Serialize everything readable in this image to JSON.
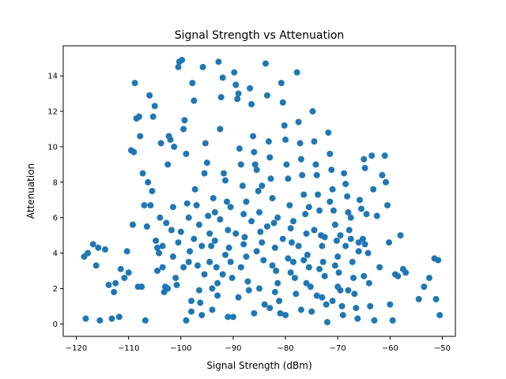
{
  "chart_data": {
    "type": "scatter",
    "title": "Signal Strength vs Attenuation",
    "xlabel": "Signal Strength (dBm)",
    "ylabel": "Attenuation",
    "xlim": [
      -122.5,
      -47.5
    ],
    "ylim": [
      -0.7,
      15.7
    ],
    "xticks": [
      -120,
      -110,
      -100,
      -90,
      -80,
      -70,
      -60,
      -50
    ],
    "yticks": [
      0,
      2,
      4,
      6,
      8,
      10,
      12,
      14
    ],
    "grid": false,
    "marker_color": "#1f77b4",
    "points": [
      [
        -118.5,
        3.8
      ],
      [
        -117.8,
        4.0
      ],
      [
        -118.2,
        0.3
      ],
      [
        -116.8,
        4.5
      ],
      [
        -116.2,
        3.3
      ],
      [
        -115.8,
        4.3
      ],
      [
        -115.5,
        0.2
      ],
      [
        -114.5,
        4.2
      ],
      [
        -113.8,
        2.2
      ],
      [
        -113.2,
        0.3
      ],
      [
        -112.8,
        1.8
      ],
      [
        -112.5,
        2.3
      ],
      [
        -111.8,
        0.4
      ],
      [
        -111.5,
        3.1
      ],
      [
        -110.8,
        2.6
      ],
      [
        -110.3,
        4.1
      ],
      [
        -110.0,
        2.9
      ],
      [
        -109.5,
        9.8
      ],
      [
        -109.2,
        5.6
      ],
      [
        -109.0,
        9.7
      ],
      [
        -108.8,
        13.6
      ],
      [
        -108.5,
        11.6
      ],
      [
        -108.2,
        2.1
      ],
      [
        -108.0,
        11.7
      ],
      [
        -107.8,
        10.6
      ],
      [
        -107.5,
        2.1
      ],
      [
        -107.3,
        8.5
      ],
      [
        -107.0,
        6.7
      ],
      [
        -106.8,
        0.2
      ],
      [
        -106.5,
        5.5
      ],
      [
        -106.3,
        8.0
      ],
      [
        -106.0,
        12.9
      ],
      [
        -105.8,
        6.7
      ],
      [
        -105.5,
        7.5
      ],
      [
        -105.3,
        11.7
      ],
      [
        -105.0,
        12.3
      ],
      [
        -104.8,
        4.7
      ],
      [
        -104.5,
        4.3
      ],
      [
        -104.2,
        4.0
      ],
      [
        -104.0,
        6.0
      ],
      [
        -103.8,
        10.2
      ],
      [
        -103.5,
        3.2
      ],
      [
        -103.2,
        1.8
      ],
      [
        -103.0,
        2.1
      ],
      [
        -102.8,
        5.7
      ],
      [
        -102.5,
        9.0
      ],
      [
        -102.3,
        10.6
      ],
      [
        -102.0,
        10.4
      ],
      [
        -101.8,
        5.3
      ],
      [
        -101.5,
        6.6
      ],
      [
        -101.3,
        10.0
      ],
      [
        -101.0,
        2.6
      ],
      [
        -100.8,
        2.2
      ],
      [
        -100.5,
        14.5
      ],
      [
        -100.3,
        14.8
      ],
      [
        -100.0,
        5.2
      ],
      [
        -99.8,
        14.9
      ],
      [
        -99.5,
        11.0
      ],
      [
        -99.3,
        11.5
      ],
      [
        -99.0,
        9.6
      ],
      [
        -98.8,
        6.8
      ],
      [
        -98.5,
        6.0
      ],
      [
        -98.3,
        4.1
      ],
      [
        -98.0,
        1.3
      ],
      [
        -97.8,
        13.6
      ],
      [
        -97.5,
        12.6
      ],
      [
        -97.3,
        7.6
      ],
      [
        -97.0,
        6.7
      ],
      [
        -96.8,
        3.3
      ],
      [
        -96.5,
        1.9
      ],
      [
        -96.3,
        1.2
      ],
      [
        -96.0,
        0.5
      ],
      [
        -95.8,
        14.5
      ],
      [
        -95.5,
        8.5
      ],
      [
        -95.3,
        10.2
      ],
      [
        -95.0,
        9.1
      ],
      [
        -94.8,
        6.1
      ],
      [
        -94.5,
        5.1
      ],
      [
        -94.2,
        4.4
      ],
      [
        -94.0,
        2.0
      ],
      [
        -93.8,
        7.1
      ],
      [
        -93.5,
        6.3
      ],
      [
        -93.2,
        3.2
      ],
      [
        -93.0,
        2.3
      ],
      [
        -92.8,
        14.8
      ],
      [
        -92.5,
        11.0
      ],
      [
        -92.3,
        12.8
      ],
      [
        -92.0,
        13.9
      ],
      [
        -91.8,
        8.5
      ],
      [
        -91.5,
        8.1
      ],
      [
        -91.2,
        6.9
      ],
      [
        -91.0,
        5.3
      ],
      [
        -90.8,
        4.3
      ],
      [
        -90.5,
        3.5
      ],
      [
        -90.2,
        2.6
      ],
      [
        -90.0,
        0.4
      ],
      [
        -89.8,
        14.2
      ],
      [
        -89.5,
        13.5
      ],
      [
        -89.2,
        12.7
      ],
      [
        -89.0,
        13.0
      ],
      [
        -88.8,
        9.9
      ],
      [
        -88.5,
        9.0
      ],
      [
        -88.2,
        7.8
      ],
      [
        -88.0,
        6.2
      ],
      [
        -87.8,
        4.9
      ],
      [
        -87.5,
        3.8
      ],
      [
        -87.2,
        2.4
      ],
      [
        -87.0,
        1.9
      ],
      [
        -86.8,
        13.3
      ],
      [
        -86.5,
        12.4
      ],
      [
        -86.2,
        10.6
      ],
      [
        -86.0,
        9.7
      ],
      [
        -85.8,
        9.0
      ],
      [
        -85.5,
        8.7
      ],
      [
        -85.2,
        7.5
      ],
      [
        -85.0,
        6.3
      ],
      [
        -84.8,
        5.2
      ],
      [
        -84.5,
        4.6
      ],
      [
        -84.2,
        3.6
      ],
      [
        -84.0,
        1.1
      ],
      [
        -83.8,
        14.7
      ],
      [
        -83.5,
        12.9
      ],
      [
        -83.2,
        10.3
      ],
      [
        -83.0,
        9.4
      ],
      [
        -82.8,
        8.2
      ],
      [
        -82.5,
        7.1
      ],
      [
        -82.2,
        5.7
      ],
      [
        -82.0,
        4.3
      ],
      [
        -81.8,
        3.0
      ],
      [
        -81.5,
        2.3
      ],
      [
        -81.2,
        1.3
      ],
      [
        -81.0,
        0.6
      ],
      [
        -80.8,
        13.6
      ],
      [
        -80.5,
        12.5
      ],
      [
        -80.2,
        11.2
      ],
      [
        -80.0,
        10.4
      ],
      [
        -79.8,
        9.0
      ],
      [
        -79.5,
        8.2
      ],
      [
        -79.2,
        6.7
      ],
      [
        -79.0,
        5.4
      ],
      [
        -78.8,
        4.6
      ],
      [
        -78.5,
        3.5
      ],
      [
        -78.2,
        2.6
      ],
      [
        -78.0,
        1.7
      ],
      [
        -77.8,
        14.2
      ],
      [
        -77.5,
        11.4
      ],
      [
        -77.2,
        10.2
      ],
      [
        -77.0,
        9.3
      ],
      [
        -76.8,
        8.4
      ],
      [
        -76.5,
        7.3
      ],
      [
        -76.2,
        6.2
      ],
      [
        -76.0,
        5.1
      ],
      [
        -75.8,
        3.9
      ],
      [
        -75.5,
        3.2
      ],
      [
        -75.2,
        2.1
      ],
      [
        -75.0,
        0.7
      ],
      [
        -74.8,
        12.0
      ],
      [
        -74.5,
        10.3
      ],
      [
        -74.2,
        9.0
      ],
      [
        -74.0,
        8.4
      ],
      [
        -73.8,
        7.3
      ],
      [
        -73.5,
        6.4
      ],
      [
        -73.2,
        5.0
      ],
      [
        -73.0,
        4.4
      ],
      [
        -72.8,
        3.5
      ],
      [
        -72.5,
        2.7
      ],
      [
        -72.2,
        1.1
      ],
      [
        -72.0,
        0.1
      ],
      [
        -71.8,
        10.8
      ],
      [
        -71.5,
        9.6
      ],
      [
        -71.2,
        8.7
      ],
      [
        -71.0,
        7.6
      ],
      [
        -70.8,
        6.4
      ],
      [
        -70.5,
        5.6
      ],
      [
        -70.2,
        4.7
      ],
      [
        -70.0,
        3.8
      ],
      [
        -69.8,
        2.9
      ],
      [
        -69.5,
        1.9
      ],
      [
        -69.2,
        1.0
      ],
      [
        -69.0,
        0.5
      ],
      [
        -68.8,
        8.5
      ],
      [
        -68.5,
        7.9
      ],
      [
        -68.2,
        7.2
      ],
      [
        -68.0,
        6.3
      ],
      [
        -67.8,
        5.3
      ],
      [
        -67.5,
        4.8
      ],
      [
        -67.2,
        3.5
      ],
      [
        -67.0,
        2.6
      ],
      [
        -66.8,
        1.7
      ],
      [
        -66.5,
        0.9
      ],
      [
        -66.2,
        0.3
      ],
      [
        -66.0,
        4.1
      ],
      [
        -65.8,
        7.0
      ],
      [
        -65.5,
        6.5
      ],
      [
        -65.2,
        4.8
      ],
      [
        -65.0,
        9.3
      ],
      [
        -64.8,
        8.8
      ],
      [
        -64.5,
        6.2
      ],
      [
        -64.2,
        4.0
      ],
      [
        -64.0,
        2.3
      ],
      [
        -63.8,
        1.0
      ],
      [
        -63.5,
        9.5
      ],
      [
        -63.2,
        7.6
      ],
      [
        -63.0,
        0.2
      ],
      [
        -62.5,
        6.1
      ],
      [
        -62.0,
        3.2
      ],
      [
        -61.5,
        8.4
      ],
      [
        -61.0,
        9.5
      ],
      [
        -60.8,
        8.0
      ],
      [
        -60.5,
        6.7
      ],
      [
        -60.2,
        4.6
      ],
      [
        -60.0,
        1.1
      ],
      [
        -59.5,
        0.2
      ],
      [
        -59.0,
        2.8
      ],
      [
        -58.5,
        2.7
      ],
      [
        -58.0,
        5.0
      ],
      [
        -57.5,
        3.1
      ],
      [
        -57.0,
        2.9
      ],
      [
        -54.5,
        1.4
      ],
      [
        -53.5,
        2.1
      ],
      [
        -52.5,
        2.6
      ],
      [
        -51.5,
        3.7
      ],
      [
        -51.2,
        1.4
      ],
      [
        -50.8,
        3.6
      ],
      [
        -50.5,
        0.5
      ],
      [
        -98.5,
        3.5
      ],
      [
        -97.5,
        4.8
      ],
      [
        -96.5,
        5.6
      ],
      [
        -95.5,
        2.8
      ],
      [
        -93.5,
        4.7
      ],
      [
        -92.5,
        5.9
      ],
      [
        -91.5,
        3.9
      ],
      [
        -90.5,
        6.6
      ],
      [
        -89.5,
        5.1
      ],
      [
        -88.5,
        3.2
      ],
      [
        -87.5,
        6.9
      ],
      [
        -86.5,
        5.8
      ],
      [
        -85.5,
        4.1
      ],
      [
        -84.5,
        7.8
      ],
      [
        -83.5,
        5.5
      ],
      [
        -82.5,
        3.3
      ],
      [
        -81.5,
        6.0
      ],
      [
        -80.5,
        4.8
      ],
      [
        -79.5,
        3.7
      ],
      [
        -78.5,
        5.8
      ],
      [
        -77.5,
        4.4
      ],
      [
        -76.5,
        3.6
      ],
      [
        -75.5,
        6.6
      ],
      [
        -74.5,
        5.3
      ],
      [
        -73.5,
        3.1
      ],
      [
        -72.5,
        4.9
      ],
      [
        -71.5,
        6.9
      ],
      [
        -70.5,
        3.3
      ],
      [
        -69.5,
        5.0
      ],
      [
        -68.5,
        4.4
      ],
      [
        -67.5,
        6.0
      ],
      [
        -99.5,
        3.2
      ],
      [
        -100.5,
        4.6
      ],
      [
        -101.5,
        3.8
      ],
      [
        -102.5,
        2.0
      ],
      [
        -103.5,
        4.4
      ],
      [
        -104.5,
        3.0
      ],
      [
        -99.0,
        0.2
      ],
      [
        -98.0,
        0.7
      ],
      [
        -94.0,
        0.8
      ],
      [
        -93.0,
        1.6
      ],
      [
        -91.0,
        0.4
      ],
      [
        -89.0,
        1.5
      ],
      [
        -86.0,
        0.6
      ],
      [
        -83.0,
        0.9
      ],
      [
        -80.0,
        0.5
      ],
      [
        -77.0,
        0.8
      ],
      [
        -74.0,
        1.6
      ],
      [
        -71.0,
        1.3
      ],
      [
        -68.0,
        1.9
      ],
      [
        -65.0,
        2.7
      ],
      [
        -96.0,
        4.4
      ],
      [
        -94.5,
        3.5
      ],
      [
        -92.0,
        2.8
      ],
      [
        -88.0,
        4.5
      ],
      [
        -85.0,
        2.0
      ],
      [
        -82.0,
        1.8
      ],
      [
        -79.0,
        2.9
      ],
      [
        -76.0,
        2.3
      ],
      [
        -73.0,
        1.5
      ],
      [
        -70.0,
        2.1
      ],
      [
        -66.0,
        4.6
      ],
      [
        -64.8,
        4.5
      ]
    ]
  }
}
